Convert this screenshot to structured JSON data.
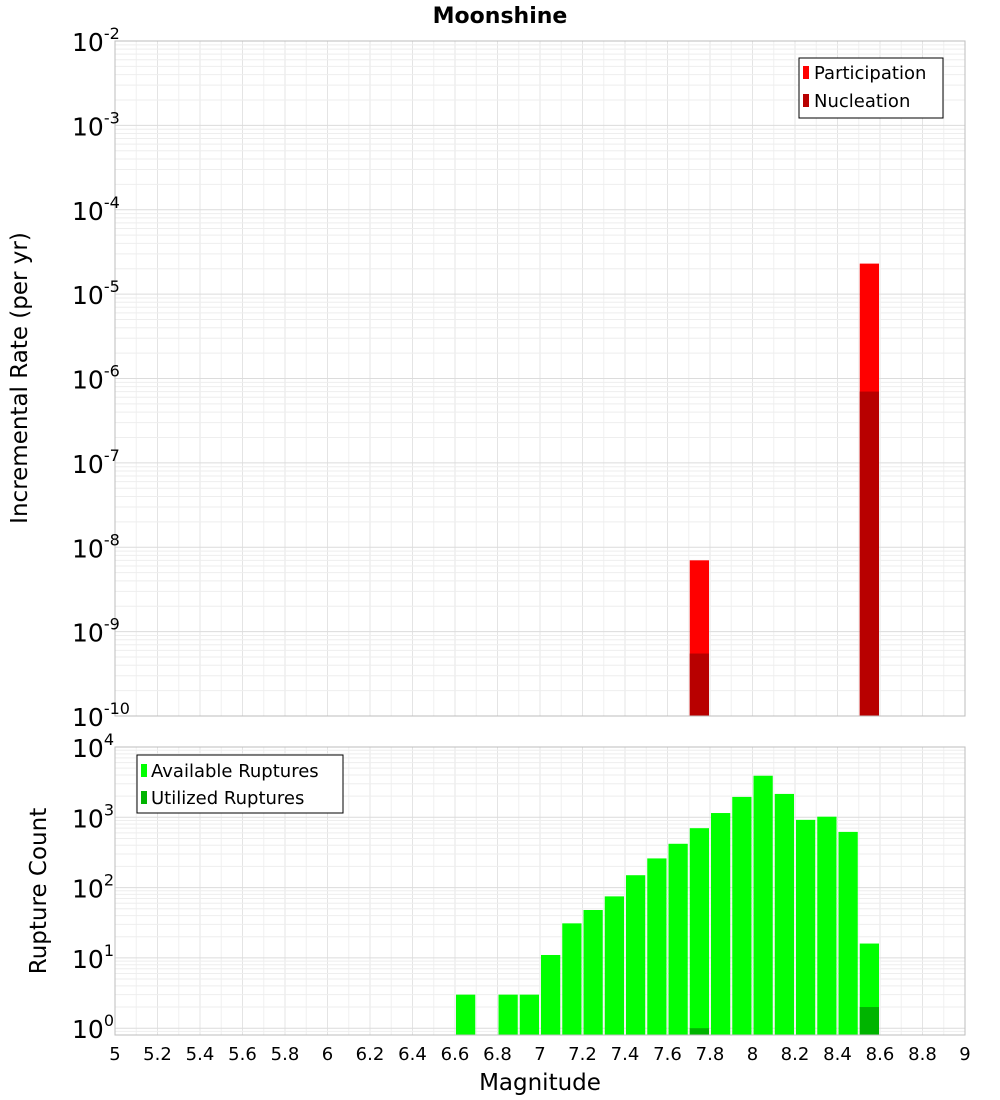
{
  "chart_data": [
    {
      "type": "bar",
      "title": "Moonshine",
      "xlabel": "",
      "ylabel": "Incremental Rate (per yr)",
      "y_scale": "log",
      "xlim": [
        5,
        9
      ],
      "ylim": [
        1e-10,
        0.01
      ],
      "grid": true,
      "legend_position": "top-right",
      "overlay": true,
      "y_ticks": [
        {
          "base": "10",
          "exp": "-10"
        },
        {
          "base": "10",
          "exp": "-9"
        },
        {
          "base": "10",
          "exp": "-8"
        },
        {
          "base": "10",
          "exp": "-7"
        },
        {
          "base": "10",
          "exp": "-6"
        },
        {
          "base": "10",
          "exp": "-5"
        },
        {
          "base": "10",
          "exp": "-4"
        },
        {
          "base": "10",
          "exp": "-3"
        },
        {
          "base": "10",
          "exp": "-2"
        }
      ],
      "series": [
        {
          "name": "Participation",
          "color": "#ff0000",
          "points": [
            {
              "x": 7.75,
              "y": 7e-09
            },
            {
              "x": 8.55,
              "y": 2.3e-05
            }
          ]
        },
        {
          "name": "Nucleation",
          "color": "#b80000",
          "points": [
            {
              "x": 7.75,
              "y": 5.5e-10
            },
            {
              "x": 8.55,
              "y": 7e-07
            }
          ]
        }
      ]
    },
    {
      "type": "bar",
      "title": "",
      "xlabel": "Magnitude",
      "ylabel": "Rupture Count",
      "y_scale": "log",
      "xlim": [
        5,
        9
      ],
      "ylim": [
        0.8,
        10000
      ],
      "grid": true,
      "legend_position": "top-left",
      "overlay": true,
      "x_ticks": [
        "5",
        "5.2",
        "5.4",
        "5.6",
        "5.8",
        "6",
        "6.2",
        "6.4",
        "6.6",
        "6.8",
        "7",
        "7.2",
        "7.4",
        "7.6",
        "7.8",
        "8",
        "8.2",
        "8.4",
        "8.6",
        "8.8",
        "9"
      ],
      "y_ticks": [
        {
          "base": "10",
          "exp": "0"
        },
        {
          "base": "10",
          "exp": "1"
        },
        {
          "base": "10",
          "exp": "2"
        },
        {
          "base": "10",
          "exp": "3"
        },
        {
          "base": "10",
          "exp": "4"
        }
      ],
      "series": [
        {
          "name": "Available Ruptures",
          "color": "#00ff00",
          "points": [
            {
              "x": 6.65,
              "y": 3
            },
            {
              "x": 6.85,
              "y": 3
            },
            {
              "x": 6.95,
              "y": 3
            },
            {
              "x": 7.05,
              "y": 11
            },
            {
              "x": 7.15,
              "y": 31
            },
            {
              "x": 7.25,
              "y": 48
            },
            {
              "x": 7.35,
              "y": 75
            },
            {
              "x": 7.45,
              "y": 150
            },
            {
              "x": 7.55,
              "y": 260
            },
            {
              "x": 7.65,
              "y": 420
            },
            {
              "x": 7.75,
              "y": 700
            },
            {
              "x": 7.85,
              "y": 1150
            },
            {
              "x": 7.95,
              "y": 1950
            },
            {
              "x": 8.05,
              "y": 3900
            },
            {
              "x": 8.15,
              "y": 2150
            },
            {
              "x": 8.25,
              "y": 920
            },
            {
              "x": 8.35,
              "y": 1020
            },
            {
              "x": 8.45,
              "y": 620
            },
            {
              "x": 8.55,
              "y": 16
            }
          ]
        },
        {
          "name": "Utilized Ruptures",
          "color": "#00b400",
          "points": [
            {
              "x": 7.75,
              "y": 1
            },
            {
              "x": 8.55,
              "y": 2
            }
          ]
        }
      ]
    }
  ]
}
